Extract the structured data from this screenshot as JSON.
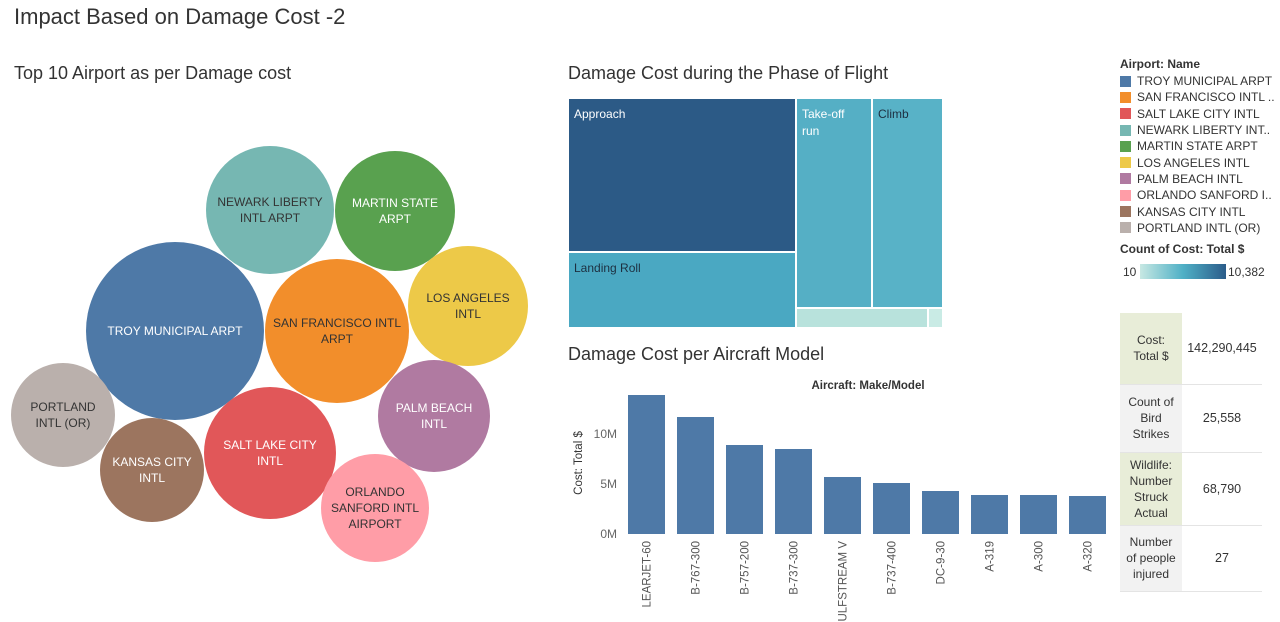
{
  "title": "Impact Based on Damage Cost -2",
  "bubble": {
    "title": "Top 10 Airport as per Damage cost",
    "items": [
      {
        "label": [
          "TROY MUNICIPAL ARPT"
        ],
        "color": "#4e79a7",
        "text": "#ffffff"
      },
      {
        "label": [
          "SAN FRANCISCO INTL",
          "ARPT"
        ],
        "color": "#f28e2b",
        "text": "#333333"
      },
      {
        "label": [
          "SALT LAKE CITY",
          "INTL"
        ],
        "color": "#e15759",
        "text": "#ffffff"
      },
      {
        "label": [
          "NEWARK LIBERTY",
          "INTL ARPT"
        ],
        "color": "#76b7b2",
        "text": "#333333"
      },
      {
        "label": [
          "MARTIN STATE",
          "ARPT"
        ],
        "color": "#59a14f",
        "text": "#ffffff"
      },
      {
        "label": [
          "LOS ANGELES",
          "INTL"
        ],
        "color": "#edc948",
        "text": "#333333"
      },
      {
        "label": [
          "PALM BEACH",
          "INTL"
        ],
        "color": "#b07aa1",
        "text": "#ffffff"
      },
      {
        "label": [
          "ORLANDO",
          "SANFORD INTL",
          "AIRPORT"
        ],
        "color": "#ff9da7",
        "text": "#333333"
      },
      {
        "label": [
          "KANSAS CITY",
          "INTL"
        ],
        "color": "#9c755f",
        "text": "#ffffff"
      },
      {
        "label": [
          "PORTLAND",
          "INTL (OR)"
        ],
        "color": "#bab0ac",
        "text": "#333333"
      }
    ]
  },
  "treemap": {
    "title": "Damage Cost during the Phase of Flight",
    "cells": [
      {
        "label": "Approach",
        "color": "#2c5a86",
        "text": "#ffffff"
      },
      {
        "label": "Landing Roll",
        "color": "#4aa8c2",
        "text": "#1d2f40"
      },
      {
        "label": "Take-off run",
        "lines": [
          "Take-off",
          "run"
        ],
        "color": "#55afc5",
        "text": "#ffffff"
      },
      {
        "label": "Climb",
        "color": "#58b2c7",
        "text": "#1d2f40"
      },
      {
        "label": "",
        "color": "#b8e2dc",
        "text": "#333333"
      },
      {
        "label": "",
        "color": "#c9ebe5",
        "text": "#333333"
      }
    ]
  },
  "chart_data": {
    "type": "bar",
    "title": "Damage Cost per Aircraft Model",
    "header": "Aircraft: Make/Model",
    "ylabel": "Cost: Total $",
    "categories": [
      "LEARJET-60",
      "B-767-300",
      "B-757-200",
      "B-737-300",
      "GULFSTREAM V",
      "B-737-400",
      "DC-9-30",
      "A-319",
      "A-300",
      "A-320"
    ],
    "values": [
      13900000,
      11700000,
      8900000,
      8500000,
      5700000,
      5100000,
      4300000,
      3900000,
      3900000,
      3800000
    ],
    "yticks": [
      {
        "v": 0,
        "label": "0M"
      },
      {
        "v": 5000000,
        "label": "5M"
      },
      {
        "v": 10000000,
        "label": "10M"
      }
    ],
    "ylim": [
      0,
      14200000
    ],
    "color": "#4e79a7"
  },
  "legend": {
    "title": "Airport: Name",
    "items": [
      {
        "name": "TROY MUNICIPAL ARPT",
        "color": "#4e79a7"
      },
      {
        "name": "SAN FRANCISCO INTL ..",
        "color": "#f28e2b"
      },
      {
        "name": "SALT LAKE CITY INTL",
        "color": "#e15759"
      },
      {
        "name": "NEWARK LIBERTY INT..",
        "color": "#76b7b2"
      },
      {
        "name": "MARTIN STATE ARPT",
        "color": "#59a14f"
      },
      {
        "name": "LOS ANGELES INTL",
        "color": "#edc948"
      },
      {
        "name": "PALM BEACH INTL",
        "color": "#b07aa1"
      },
      {
        "name": "ORLANDO SANFORD I..",
        "color": "#ff9da7"
      },
      {
        "name": "KANSAS CITY INTL",
        "color": "#9c755f"
      },
      {
        "name": "PORTLAND INTL (OR)",
        "color": "#bab0ac"
      }
    ],
    "count_title": "Count of Cost: Total $",
    "count_min": "10",
    "count_max": "10,382"
  },
  "kpis": [
    {
      "label": [
        "Cost:",
        "Total $"
      ],
      "value": "142,290,445",
      "highlight": true
    },
    {
      "label": [
        "Count of",
        "Bird",
        "Strikes"
      ],
      "value": "25,558",
      "highlight": false
    },
    {
      "label": [
        "Wildlife:",
        "Number",
        "Struck",
        "Actual"
      ],
      "value": "68,790",
      "highlight": true
    },
    {
      "label": [
        "Number",
        "of people",
        "injured"
      ],
      "value": "27",
      "highlight": false
    }
  ]
}
